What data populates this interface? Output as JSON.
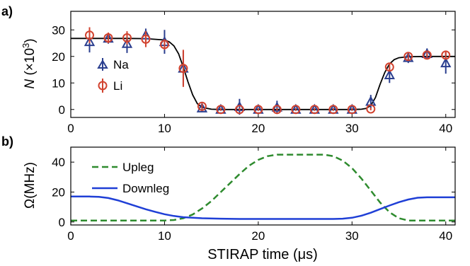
{
  "chart_data": [
    {
      "panel_label": "a)",
      "type": "scatter",
      "ylabel_main": "N",
      "ylabel_unit": " (×10",
      "ylabel_exp": "3",
      "ylabel_close": ")",
      "xlabel": "",
      "xlim": [
        0,
        41
      ],
      "ylim": [
        -3,
        37
      ],
      "xticks": [
        0,
        10,
        20,
        30,
        40
      ],
      "xtick_labels": [
        "0",
        "10",
        "20",
        "30",
        "40"
      ],
      "yticks": [
        0,
        10,
        20,
        30
      ],
      "ytick_labels": [
        "0",
        "10",
        "20",
        "30"
      ],
      "grid": false,
      "legend_position": "left",
      "series": [
        {
          "name": "Na",
          "marker": "triangle",
          "color": "#2b3f8f",
          "x": [
            2,
            4,
            6,
            8,
            10,
            12,
            14,
            16,
            18,
            20,
            22,
            24,
            26,
            28,
            30,
            32,
            34,
            36,
            38,
            40
          ],
          "y": [
            25.5,
            26.8,
            24.8,
            28,
            25.5,
            15.5,
            0.5,
            0,
            1,
            0,
            0.8,
            0,
            0,
            0,
            0,
            3,
            13,
            19.5,
            21,
            17.5
          ],
          "err": [
            4,
            2,
            3.5,
            2.5,
            4.5,
            6.5,
            1.5,
            0.5,
            3,
            0.5,
            2.5,
            0.5,
            0.5,
            0.5,
            0.5,
            2.5,
            3,
            2,
            2,
            4
          ]
        },
        {
          "name": "Li",
          "marker": "circle",
          "color": "#d2432f",
          "x": [
            2,
            4,
            6,
            8,
            10,
            12,
            14,
            16,
            18,
            20,
            22,
            24,
            26,
            28,
            30,
            32,
            34,
            36,
            38,
            40
          ],
          "y": [
            28,
            27,
            27,
            26.5,
            24.5,
            15.5,
            1.2,
            0,
            0,
            0,
            0,
            0,
            0,
            0,
            0,
            0.2,
            16,
            20,
            20.5,
            20.5
          ],
          "err": [
            3,
            2,
            2.5,
            3,
            2,
            7,
            1,
            0.5,
            0.5,
            0.5,
            0.5,
            0.5,
            0.5,
            0.5,
            0.5,
            0.5,
            1.5,
            1,
            1,
            1.5
          ]
        },
        {
          "name": "",
          "marker": "line",
          "color": "#000000",
          "x": [
            0,
            2,
            4,
            6,
            8,
            10,
            10.5,
            11,
            11.5,
            12,
            12.5,
            13,
            13.5,
            14,
            15,
            16,
            20,
            25,
            30,
            31,
            31.5,
            32,
            32.5,
            33,
            33.5,
            34,
            34.5,
            35,
            36,
            38,
            40,
            41
          ],
          "y": [
            26.8,
            26.8,
            26.8,
            26.8,
            26.7,
            26.2,
            25.5,
            24,
            21,
            16,
            10.5,
            5.5,
            2.2,
            0.8,
            0.1,
            0,
            0,
            0,
            0,
            0.1,
            0.4,
            1.5,
            4.5,
            9.5,
            14,
            17.2,
            18.8,
            19.5,
            19.9,
            20,
            20,
            20
          ]
        }
      ]
    },
    {
      "panel_label": "b)",
      "type": "line",
      "ylabel": "Ω(MHz)",
      "xlabel": "STIRAP time (μs)",
      "xlim": [
        0,
        41
      ],
      "ylim": [
        -2,
        50
      ],
      "xticks": [
        0,
        10,
        20,
        30,
        40
      ],
      "xtick_labels": [
        "0",
        "10",
        "20",
        "30",
        "40"
      ],
      "yticks": [
        0,
        20,
        40
      ],
      "ytick_labels": [
        "0",
        "20",
        "40"
      ],
      "grid": false,
      "legend_position": "top-left",
      "series": [
        {
          "name": "Upleg",
          "style": "dashed",
          "color": "#2e8b2e",
          "x": [
            0,
            2,
            4,
            6,
            8,
            10,
            11,
            12,
            13,
            14,
            15,
            16,
            17,
            18,
            19,
            20,
            21,
            22,
            23,
            24,
            25,
            26,
            27,
            28,
            29,
            30,
            31,
            32,
            33,
            34,
            35,
            36,
            38,
            40,
            41
          ],
          "y": [
            1,
            1,
            1,
            1,
            1,
            1,
            1.3,
            2.5,
            5,
            9,
            14,
            20,
            26,
            32,
            37.5,
            41.5,
            44,
            45,
            45,
            45,
            45,
            45,
            45,
            44,
            41,
            36,
            29,
            21,
            13,
            6.5,
            2.5,
            1,
            1,
            1,
            1
          ]
        },
        {
          "name": "Downleg",
          "style": "solid",
          "color": "#1f3fd6",
          "x": [
            0,
            2,
            3,
            4,
            5,
            6,
            7,
            8,
            9,
            10,
            11,
            12,
            14,
            16,
            18,
            20,
            22,
            24,
            26,
            28,
            29,
            30,
            31,
            32,
            33,
            34,
            35,
            36,
            37,
            38,
            40,
            41
          ],
          "y": [
            17,
            17,
            16.8,
            16,
            14.5,
            12.5,
            10.5,
            8.5,
            6.8,
            5.2,
            4,
            3.2,
            2.5,
            2.2,
            2,
            2,
            2,
            2,
            2,
            2,
            2.2,
            2.8,
            4.2,
            6.2,
            8.6,
            11,
            13.2,
            15,
            16.2,
            16.5,
            16.5,
            16.5
          ]
        }
      ]
    }
  ]
}
